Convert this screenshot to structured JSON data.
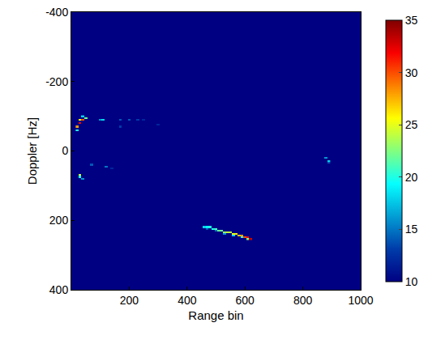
{
  "chart_data": {
    "type": "heatmap",
    "x_label": "Range bin",
    "y_label": "Doppler [Hz]",
    "xlim": [
      0,
      1000
    ],
    "xticks": [
      200,
      400,
      600,
      800,
      1000
    ],
    "ylim": [
      -400,
      400
    ],
    "yticks": [
      -400,
      -200,
      0,
      200,
      400
    ],
    "colorbar": {
      "range": [
        10,
        35
      ],
      "ticks": [
        10,
        15,
        20,
        25,
        30,
        35
      ]
    },
    "cells": {
      "x": [
        460,
        470,
        480,
        490,
        500,
        510,
        520,
        530,
        540,
        550,
        560,
        570,
        580,
        590,
        600,
        610,
        620,
        470,
        500,
        530,
        560,
        590,
        610,
        20,
        30,
        30,
        40,
        50,
        20,
        40,
        30,
        30,
        40,
        100,
        110,
        170,
        200,
        230,
        250,
        120,
        70,
        140,
        880,
        890,
        890,
        170,
        300
      ],
      "y": [
        220,
        220,
        220,
        225,
        225,
        230,
        230,
        235,
        235,
        235,
        240,
        240,
        245,
        245,
        250,
        250,
        255,
        225,
        230,
        240,
        245,
        250,
        255,
        -70,
        -80,
        -90,
        -90,
        -95,
        -60,
        -100,
        70,
        75,
        80,
        -90,
        -90,
        -90,
        -90,
        -90,
        -90,
        45,
        40,
        50,
        20,
        30,
        35,
        -70,
        -75
      ],
      "values": [
        18,
        19,
        20,
        20,
        21,
        22,
        22,
        23,
        24,
        24,
        25,
        26,
        27,
        28,
        30,
        32,
        33,
        14,
        15,
        16,
        18,
        20,
        22,
        28,
        32,
        25,
        30,
        22,
        20,
        18,
        24,
        20,
        16,
        16,
        18,
        14,
        14,
        13,
        12,
        15,
        14,
        12,
        16,
        18,
        14,
        13,
        12
      ]
    }
  }
}
